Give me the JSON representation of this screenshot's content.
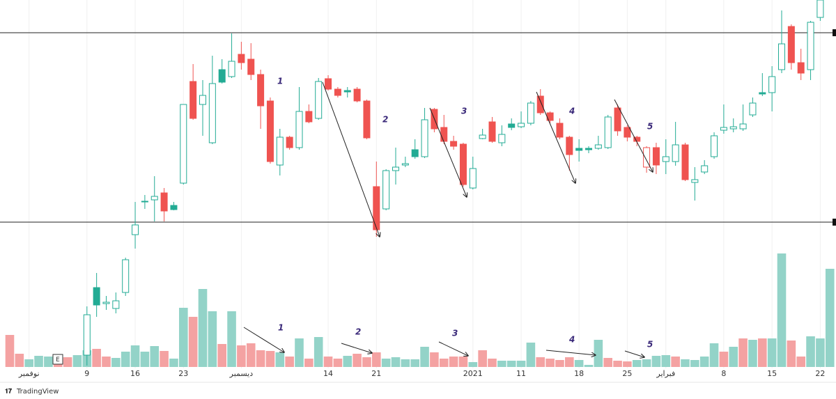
{
  "chart_data": {
    "type": "candlestick",
    "categories": [
      null,
      null,
      "نوفمبر",
      null,
      null,
      null,
      null,
      null,
      "9",
      null,
      null,
      null,
      null,
      "16",
      null,
      null,
      null,
      null,
      "23",
      null,
      null,
      null,
      null,
      null,
      "ديسمبر",
      null,
      null,
      null,
      null,
      null,
      null,
      null,
      null,
      "14",
      null,
      null,
      null,
      null,
      "21",
      null,
      null,
      null,
      null,
      null,
      null,
      null,
      null,
      null,
      "2021",
      null,
      null,
      null,
      null,
      "11",
      null,
      null,
      null,
      null,
      null,
      "18",
      null,
      null,
      null,
      null,
      "25",
      null,
      null,
      null,
      "فبراير",
      null,
      null,
      null,
      null,
      null,
      "8",
      null,
      null,
      null,
      null,
      "15",
      null,
      null,
      null,
      null,
      "22",
      null
    ],
    "open": [
      null,
      null,
      null,
      null,
      null,
      null,
      null,
      null,
      90,
      187,
      164,
      157,
      180,
      263,
      310,
      313,
      323,
      305,
      337,
      483,
      450,
      395,
      500,
      490,
      522,
      515,
      493,
      455,
      363,
      403,
      388,
      440,
      430,
      487,
      472,
      470,
      472,
      455,
      332,
      300,
      355,
      363,
      385,
      375,
      443,
      417,
      397,
      393,
      330,
      401,
      425,
      395,
      422,
      418,
      423,
      462,
      438,
      423,
      403,
      387,
      387,
      387,
      388,
      445,
      417,
      403,
      360,
      388,
      368,
      368,
      392,
      338,
      353,
      375,
      413,
      415,
      415,
      435,
      467,
      467,
      500,
      562,
      510,
      500,
      575,
      null
    ],
    "high": [
      null,
      null,
      null,
      null,
      null,
      null,
      null,
      null,
      160,
      208,
      175,
      180,
      230,
      310,
      320,
      347,
      330,
      310,
      450,
      508,
      485,
      520,
      515,
      552,
      540,
      538,
      500,
      460,
      415,
      405,
      475,
      450,
      488,
      492,
      475,
      475,
      475,
      457,
      368,
      357,
      388,
      375,
      400,
      445,
      445,
      435,
      405,
      395,
      375,
      415,
      432,
      420,
      430,
      440,
      455,
      472,
      440,
      430,
      405,
      400,
      390,
      405,
      435,
      450,
      420,
      405,
      390,
      395,
      400,
      425,
      395,
      360,
      370,
      410,
      450,
      430,
      450,
      460,
      495,
      505,
      585,
      565,
      530,
      570,
      600,
      null
    ],
    "low": [
      null,
      null,
      null,
      null,
      null,
      null,
      null,
      null,
      75,
      145,
      155,
      150,
      175,
      243,
      300,
      282,
      282,
      298,
      335,
      428,
      405,
      393,
      480,
      488,
      500,
      485,
      415,
      365,
      348,
      385,
      385,
      423,
      428,
      470,
      460,
      460,
      453,
      400,
      260,
      298,
      335,
      360,
      372,
      373,
      410,
      393,
      385,
      332,
      328,
      400,
      395,
      390,
      413,
      416,
      420,
      435,
      423,
      400,
      355,
      368,
      380,
      385,
      386,
      405,
      397,
      390,
      352,
      350,
      350,
      362,
      340,
      312,
      350,
      372,
      408,
      410,
      412,
      432,
      462,
      440,
      495,
      500,
      485,
      485,
      570,
      null
    ],
    "close": [
      null,
      null,
      null,
      null,
      null,
      null,
      null,
      null,
      148,
      162,
      166,
      168,
      227,
      277,
      311,
      318,
      297,
      299,
      450,
      430,
      463,
      480,
      482,
      512,
      510,
      493,
      448,
      368,
      403,
      388,
      440,
      425,
      483,
      472,
      463,
      468,
      455,
      402,
      270,
      355,
      360,
      365,
      375,
      428,
      415,
      397,
      390,
      335,
      358,
      406,
      397,
      407,
      417,
      423,
      452,
      438,
      427,
      403,
      378,
      384,
      385,
      392,
      432,
      412,
      403,
      397,
      388,
      363,
      375,
      392,
      342,
      342,
      362,
      405,
      417,
      418,
      422,
      452,
      465,
      490,
      537,
      510,
      495,
      568,
      600,
      null
    ],
    "volume": {
      "values": [
        46,
        19,
        11,
        16,
        15,
        14,
        14,
        17,
        24,
        26,
        15,
        13,
        22,
        31,
        22,
        30,
        23,
        12,
        85,
        72,
        112,
        80,
        33,
        80,
        31,
        34,
        24,
        23,
        21,
        15,
        41,
        12,
        43,
        15,
        12,
        16,
        19,
        14,
        21,
        12,
        14,
        11,
        11,
        29,
        21,
        12,
        15,
        15,
        7,
        24,
        12,
        9,
        9,
        9,
        35,
        14,
        12,
        10,
        14,
        10,
        3,
        39,
        13,
        9,
        8,
        10,
        11,
        16,
        17,
        15,
        11,
        10,
        15,
        34,
        22,
        29,
        41,
        39,
        41,
        41,
        163,
        38,
        15,
        44,
        41,
        141
      ],
      "colors": [
        "#f4a2a2",
        "#f4a2a2",
        "#93d3c8",
        "#93d3c8",
        "#93d3c8",
        "#f4a2a2",
        "#f4a2a2",
        "#93d3c8",
        "#93d3c8",
        "#f4a2a2",
        "#f4a2a2",
        "#93d3c8",
        "#93d3c8",
        "#93d3c8",
        "#93d3c8",
        "#93d3c8",
        "#f4a2a2",
        "#93d3c8",
        "#93d3c8",
        "#f4a2a2",
        "#93d3c8",
        "#93d3c8",
        "#f4a2a2",
        "#93d3c8",
        "#f4a2a2",
        "#f4a2a2",
        "#f4a2a2",
        "#f4a2a2",
        "#93d3c8",
        "#f4a2a2",
        "#93d3c8",
        "#f4a2a2",
        "#93d3c8",
        "#f4a2a2",
        "#f4a2a2",
        "#93d3c8",
        "#f4a2a2",
        "#f4a2a2",
        "#f4a2a2",
        "#93d3c8",
        "#93d3c8",
        "#93d3c8",
        "#93d3c8",
        "#93d3c8",
        "#f4a2a2",
        "#f4a2a2",
        "#f4a2a2",
        "#f4a2a2",
        "#93d3c8",
        "#f4a2a2",
        "#f4a2a2",
        "#93d3c8",
        "#93d3c8",
        "#93d3c8",
        "#93d3c8",
        "#f4a2a2",
        "#f4a2a2",
        "#f4a2a2",
        "#f4a2a2",
        "#93d3c8",
        "#93d3c8",
        "#93d3c8",
        "#f4a2a2",
        "#f4a2a2",
        "#f4a2a2",
        "#93d3c8",
        "#93d3c8",
        "#93d3c8",
        "#93d3c8",
        "#f4a2a2",
        "#93d3c8",
        "#93d3c8",
        "#93d3c8",
        "#93d3c8",
        "#f4a2a2",
        "#93d3c8",
        "#f4a2a2",
        "#93d3c8",
        "#f4a2a2",
        "#93d3c8",
        "#93d3c8",
        "#f4a2a2",
        "#f4a2a2",
        "#93d3c8",
        "#93d3c8",
        "#93d3c8"
      ]
    },
    "up_color": "#22ab94",
    "down_color": "#ef5350",
    "ylim": [
      0,
      600
    ],
    "y2lim": [
      0,
      200
    ],
    "levels": [
      553,
      281
    ],
    "annotations": [
      "1",
      "2",
      "3",
      "4",
      "5"
    ],
    "volume_annotations": [
      "1",
      "2",
      "3",
      "4",
      "5"
    ],
    "event_marker": "E",
    "brand": "TradingView"
  }
}
